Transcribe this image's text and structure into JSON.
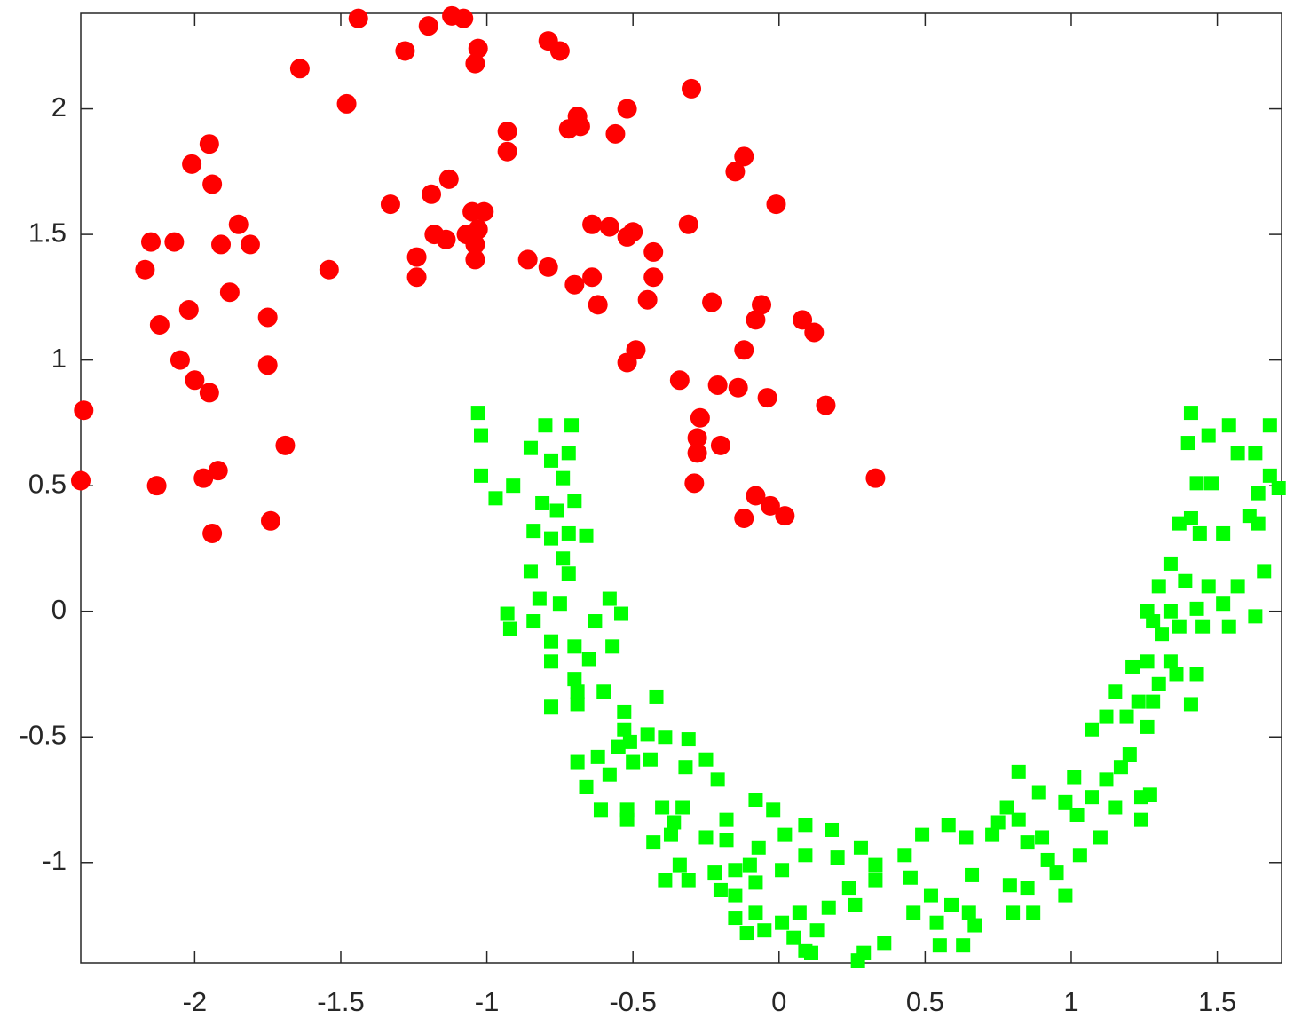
{
  "chart_data": {
    "type": "scatter",
    "xlim": [
      -2.39,
      1.72
    ],
    "ylim": [
      -1.4,
      2.38
    ],
    "xticks": [
      -2,
      -1.5,
      -1,
      -0.5,
      0,
      0.5,
      1,
      1.5
    ],
    "yticks": [
      -1,
      -0.5,
      0,
      0.5,
      1,
      1.5,
      2
    ],
    "series": [
      {
        "color": "#ff0000",
        "marker": "circle",
        "x": [
          -2.38,
          -2.39,
          -1.44,
          -1.12,
          -1.08,
          -1.2,
          -1.03,
          -1.04,
          -1.28,
          -0.79,
          -0.75,
          -1.64,
          -1.48,
          -0.3,
          -0.52,
          -0.69,
          -0.68,
          -0.72,
          -0.56,
          -0.93,
          -0.93,
          -0.12,
          -0.15,
          -1.95,
          -2.01,
          -1.94,
          -1.13,
          -1.19,
          -1.33,
          -0.01,
          -1.05,
          -1.01,
          -1.03,
          -1.18,
          -1.14,
          -1.07,
          -1.04,
          -1.04,
          -1.24,
          -1.24,
          -1.54,
          -0.86,
          -0.79,
          -0.64,
          -0.58,
          -0.52,
          -0.5,
          -0.43,
          -0.43,
          -0.31,
          -0.64,
          -0.7,
          -0.62,
          -0.45,
          -2.15,
          -2.07,
          -2.17,
          -1.91,
          -1.85,
          -1.81,
          -1.88,
          -2.02,
          -2.12,
          -1.75,
          -2.05,
          -1.75,
          -2.0,
          -1.95,
          -1.69,
          -1.92,
          -1.97,
          -2.13,
          -1.94,
          -1.74,
          -0.49,
          -0.52,
          -0.23,
          -0.06,
          -0.08,
          0.08,
          0.12,
          -0.12,
          -0.34,
          -0.21,
          -0.14,
          -0.04,
          0.16,
          -0.27,
          -0.28,
          -0.28,
          -0.2,
          -0.29,
          0.33,
          -0.08,
          -0.12,
          -0.03,
          0.02
        ],
        "values": [
          0.8,
          0.52,
          2.36,
          2.37,
          2.36,
          2.33,
          2.24,
          2.18,
          2.23,
          2.27,
          2.23,
          2.16,
          2.02,
          2.08,
          2.0,
          1.97,
          1.93,
          1.92,
          1.9,
          1.91,
          1.83,
          1.81,
          1.75,
          1.86,
          1.78,
          1.7,
          1.72,
          1.66,
          1.62,
          1.62,
          1.59,
          1.59,
          1.52,
          1.5,
          1.48,
          1.5,
          1.46,
          1.4,
          1.41,
          1.33,
          1.36,
          1.4,
          1.37,
          1.54,
          1.53,
          1.49,
          1.51,
          1.43,
          1.33,
          1.54,
          1.33,
          1.3,
          1.22,
          1.24,
          1.47,
          1.47,
          1.36,
          1.46,
          1.54,
          1.46,
          1.27,
          1.2,
          1.14,
          1.17,
          1.0,
          0.98,
          0.92,
          0.87,
          0.66,
          0.56,
          0.53,
          0.5,
          0.31,
          0.36,
          1.04,
          0.99,
          1.23,
          1.22,
          1.16,
          1.16,
          1.11,
          1.04,
          0.92,
          0.9,
          0.89,
          0.85,
          0.82,
          0.77,
          0.69,
          0.63,
          0.66,
          0.51,
          0.53,
          0.46,
          0.37,
          0.42,
          0.38
        ]
      },
      {
        "color": "#00ff00",
        "marker": "square",
        "x": [
          -1.03,
          -1.02,
          -1.02,
          -0.97,
          -0.91,
          -0.85,
          -0.8,
          -0.71,
          -0.78,
          -0.72,
          -0.74,
          -0.81,
          -0.76,
          -0.7,
          -0.84,
          -0.78,
          -0.72,
          -0.66,
          -0.74,
          -0.85,
          -0.72,
          -0.82,
          -0.75,
          -0.93,
          -0.92,
          -0.84,
          -0.58,
          -0.54,
          -0.63,
          -0.78,
          -0.7,
          -0.78,
          -0.65,
          -0.57,
          -0.7,
          -0.69,
          -0.6,
          -0.78,
          -0.69,
          -0.53,
          -0.42,
          -0.53,
          -0.51,
          -0.45,
          -0.39,
          -0.31,
          -0.69,
          -0.62,
          -0.55,
          -0.58,
          -0.66,
          -0.44,
          -0.32,
          -0.25,
          -0.21,
          -0.5,
          -0.61,
          -0.52,
          -0.4,
          -0.33,
          -0.52,
          -0.36,
          -0.18,
          -0.08,
          -0.02,
          -0.37,
          -0.43,
          -0.25,
          -0.18,
          -0.07,
          0.02,
          0.09,
          0.18,
          -0.34,
          -0.39,
          -0.31,
          -0.22,
          -0.15,
          -0.1,
          -0.2,
          -0.15,
          -0.08,
          0.01,
          0.09,
          -0.15,
          -0.08,
          -0.11,
          -0.05,
          0.01,
          0.07,
          0.05,
          0.09,
          0.13,
          0.17,
          0.2,
          0.26,
          0.24,
          0.28,
          0.33,
          0.33,
          0.27,
          0.29,
          0.36,
          0.11,
          0.43,
          0.45,
          0.49,
          0.46,
          0.52,
          0.54,
          0.55,
          0.59,
          0.58,
          0.63,
          0.65,
          0.67,
          0.66,
          0.64,
          0.73,
          0.75,
          0.79,
          0.8,
          0.78,
          0.82,
          0.82,
          0.85,
          0.85,
          0.87,
          0.9,
          0.89,
          0.92,
          0.95,
          0.98,
          1.01,
          0.98,
          1.02,
          1.03,
          1.1,
          1.07,
          1.12,
          1.15,
          1.17,
          1.24,
          1.24,
          1.27,
          1.07,
          1.12,
          1.15,
          1.19,
          1.2,
          1.23,
          1.26,
          1.28,
          1.21,
          1.26,
          1.3,
          1.34,
          1.36,
          1.41,
          1.43,
          1.28,
          1.26,
          1.31,
          1.34,
          1.37,
          1.45,
          1.43,
          1.3,
          1.34,
          1.39,
          1.47,
          1.54,
          1.52,
          1.57,
          1.63,
          1.66,
          1.37,
          1.41,
          1.44,
          1.52,
          1.61,
          1.64,
          1.64,
          1.71,
          1.43,
          1.48,
          1.4,
          1.47,
          1.54,
          1.57,
          1.63,
          1.68,
          1.41,
          1.68
        ],
        "values": [
          0.79,
          0.7,
          0.54,
          0.45,
          0.5,
          0.65,
          0.74,
          0.74,
          0.6,
          0.63,
          0.53,
          0.43,
          0.4,
          0.44,
          0.32,
          0.29,
          0.31,
          0.3,
          0.21,
          0.16,
          0.15,
          0.05,
          0.03,
          -0.01,
          -0.07,
          -0.04,
          0.05,
          -0.01,
          -0.04,
          -0.12,
          -0.14,
          -0.2,
          -0.19,
          -0.14,
          -0.27,
          -0.32,
          -0.32,
          -0.38,
          -0.37,
          -0.4,
          -0.34,
          -0.47,
          -0.52,
          -0.49,
          -0.5,
          -0.51,
          -0.6,
          -0.58,
          -0.54,
          -0.65,
          -0.7,
          -0.59,
          -0.62,
          -0.59,
          -0.67,
          -0.6,
          -0.79,
          -0.79,
          -0.78,
          -0.78,
          -0.83,
          -0.84,
          -0.83,
          -0.75,
          -0.79,
          -0.89,
          -0.92,
          -0.9,
          -0.91,
          -0.94,
          -0.89,
          -0.85,
          -0.87,
          -1.01,
          -1.07,
          -1.07,
          -1.04,
          -1.03,
          -1.01,
          -1.11,
          -1.13,
          -1.08,
          -1.03,
          -0.97,
          -1.22,
          -1.2,
          -1.28,
          -1.27,
          -1.24,
          -1.2,
          -1.3,
          -1.35,
          -1.27,
          -1.18,
          -0.98,
          -1.17,
          -1.1,
          -0.94,
          -1.01,
          -1.07,
          -1.39,
          -1.36,
          -1.32,
          -1.36,
          -0.97,
          -1.06,
          -0.89,
          -1.2,
          -1.13,
          -1.24,
          -1.33,
          -1.17,
          -0.85,
          -1.33,
          -1.2,
          -1.25,
          -1.05,
          -0.9,
          -0.89,
          -0.84,
          -1.09,
          -1.2,
          -0.78,
          -0.83,
          -0.64,
          -0.92,
          -1.1,
          -1.2,
          -0.9,
          -0.72,
          -0.99,
          -1.04,
          -1.13,
          -0.66,
          -0.76,
          -0.81,
          -0.97,
          -0.9,
          -0.74,
          -0.67,
          -0.78,
          -0.62,
          -0.74,
          -0.83,
          -0.73,
          -0.47,
          -0.42,
          -0.32,
          -0.42,
          -0.57,
          -0.36,
          -0.46,
          -0.36,
          -0.22,
          -0.2,
          -0.29,
          -0.2,
          -0.25,
          -0.37,
          -0.25,
          -0.04,
          0.0,
          -0.09,
          0.0,
          -0.06,
          -0.06,
          0.01,
          0.1,
          0.19,
          0.12,
          0.1,
          -0.06,
          0.03,
          0.1,
          -0.02,
          0.16,
          0.35,
          0.37,
          0.31,
          0.31,
          0.38,
          0.35,
          0.47,
          0.49,
          0.51,
          0.51,
          0.67,
          0.7,
          0.74,
          0.63,
          0.63,
          0.74,
          0.79,
          0.54
        ]
      }
    ]
  }
}
